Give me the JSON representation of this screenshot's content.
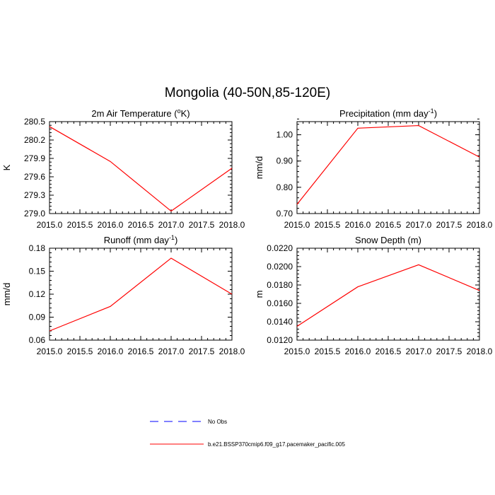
{
  "title": "Mongolia (40-50N,85-120E)",
  "chart_data": [
    {
      "type": "line",
      "title": "2m Air Temperature (",
      "title_super": "o",
      "title_tail": "K)",
      "xlabel": "",
      "ylabel": "K",
      "x": [
        2015.0,
        2016.0,
        2017.0,
        2018.0
      ],
      "series": [
        {
          "name": "b.e21.BSSP370cmip6.f09_g17.pacemaker_pacific.005",
          "values": [
            280.42,
            279.85,
            279.04,
            279.74
          ]
        }
      ],
      "xlim": [
        2015.0,
        2018.0
      ],
      "ylim": [
        279.0,
        280.5
      ],
      "xticks": [
        2015.0,
        2015.5,
        2016.0,
        2016.5,
        2017.0,
        2017.5,
        2018.0
      ],
      "xtick_labels": [
        "2015.0",
        "2015.5",
        "2016.0",
        "2016.5",
        "2017.0",
        "2017.5",
        "2018.0"
      ],
      "yticks": [
        279.0,
        279.3,
        279.6,
        279.9,
        280.2,
        280.5
      ],
      "ytick_labels": [
        "279.0",
        "279.3",
        "279.6",
        "279.9",
        "280.2",
        "280.5"
      ],
      "yminor_step": 0.06
    },
    {
      "type": "line",
      "title": "Precipitation (mm day",
      "title_super": "-1",
      "title_tail": ")",
      "xlabel": "",
      "ylabel": "mm/d",
      "x": [
        2015.0,
        2016.0,
        2017.0,
        2018.0
      ],
      "series": [
        {
          "name": "b.e21.BSSP370cmip6.f09_g17.pacemaker_pacific.005",
          "values": [
            0.735,
            1.025,
            1.035,
            0.915
          ]
        }
      ],
      "xlim": [
        2015.0,
        2018.0
      ],
      "ylim": [
        0.7,
        1.05
      ],
      "xticks": [
        2015.0,
        2015.5,
        2016.0,
        2016.5,
        2017.0,
        2017.5,
        2018.0
      ],
      "xtick_labels": [
        "2015.0",
        "2015.5",
        "2016.0",
        "2016.5",
        "2017.0",
        "2017.5",
        "2018.0"
      ],
      "yticks": [
        0.7,
        0.8,
        0.9,
        1.0
      ],
      "ytick_labels": [
        "0.70",
        "0.80",
        "0.90",
        "1.00"
      ],
      "yminor_step": 0.02
    },
    {
      "type": "line",
      "title": "Runoff (mm day",
      "title_super": "-1",
      "title_tail": ")",
      "xlabel": "",
      "ylabel": "mm/d",
      "x": [
        2015.0,
        2016.0,
        2017.0,
        2018.0
      ],
      "series": [
        {
          "name": "b.e21.BSSP370cmip6.f09_g17.pacemaker_pacific.005",
          "values": [
            0.072,
            0.104,
            0.167,
            0.12
          ]
        }
      ],
      "xlim": [
        2015.0,
        2018.0
      ],
      "ylim": [
        0.06,
        0.18
      ],
      "xticks": [
        2015.0,
        2015.5,
        2016.0,
        2016.5,
        2017.0,
        2017.5,
        2018.0
      ],
      "xtick_labels": [
        "2015.0",
        "2015.5",
        "2016.0",
        "2016.5",
        "2017.0",
        "2017.5",
        "2018.0"
      ],
      "yticks": [
        0.06,
        0.09,
        0.12,
        0.15,
        0.18
      ],
      "ytick_labels": [
        "0.06",
        "0.09",
        "0.12",
        "0.15",
        "0.18"
      ],
      "yminor_step": 0.006
    },
    {
      "type": "line",
      "title": "Snow Depth (m)",
      "title_super": "",
      "title_tail": "",
      "xlabel": "",
      "ylabel": "m",
      "x": [
        2015.0,
        2016.0,
        2017.0,
        2018.0
      ],
      "series": [
        {
          "name": "b.e21.BSSP370cmip6.f09_g17.pacemaker_pacific.005",
          "values": [
            0.0135,
            0.0178,
            0.0202,
            0.0174
          ]
        }
      ],
      "xlim": [
        2015.0,
        2018.0
      ],
      "ylim": [
        0.012,
        0.022
      ],
      "xticks": [
        2015.0,
        2015.5,
        2016.0,
        2016.5,
        2017.0,
        2017.5,
        2018.0
      ],
      "xtick_labels": [
        "2015.0",
        "2015.5",
        "2016.0",
        "2016.5",
        "2017.0",
        "2017.5",
        "2018.0"
      ],
      "yticks": [
        0.012,
        0.014,
        0.016,
        0.018,
        0.02,
        0.022
      ],
      "ytick_labels": [
        "0.0120",
        "0.0140",
        "0.0160",
        "0.0180",
        "0.0200",
        "0.0220"
      ],
      "yminor_step": 0.0004
    }
  ],
  "legend": [
    {
      "label": "No Obs",
      "color": "#0000ff",
      "style": "dashed"
    },
    {
      "label": "b.e21.BSSP370cmip6.f09_g17.pacemaker_pacific.005",
      "color": "#ff0000",
      "style": "solid"
    }
  ],
  "colors": {
    "model_line": "#ff0000",
    "obs_line": "#0000ff",
    "axes": "#000000"
  }
}
